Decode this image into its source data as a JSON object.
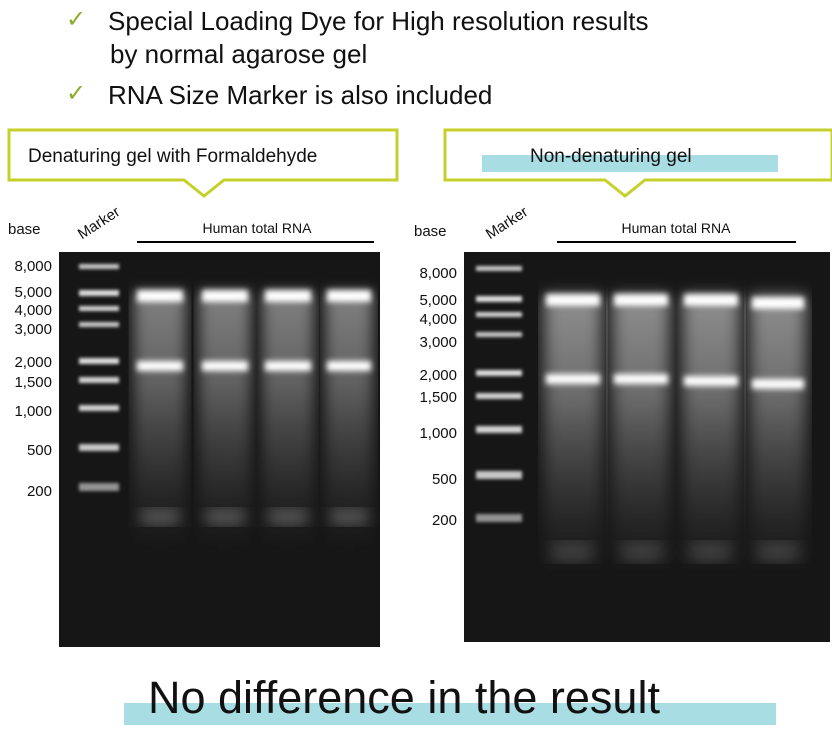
{
  "bullets": [
    {
      "icon": "checkmark-icon",
      "line1": "Special Loading Dye for High resolution results",
      "line2": "by normal agarose gel"
    },
    {
      "icon": "checkmark-icon",
      "line1": "RNA Size Marker is also included"
    }
  ],
  "accent_colors": {
    "check": "#8aac2c",
    "callout_border": "#c5d12a",
    "highlight": "#a7dde3",
    "gel_background": "#161616"
  },
  "panels": [
    {
      "callout": "Denaturing gel with Formaldehyde",
      "axis_label": "base",
      "marker_label": "Marker",
      "lanes_label": "Human total RNA",
      "size_labels": [
        "8,000",
        "5,000",
        "4,000",
        "3,000",
        "2,000",
        "1,500",
        "1,000",
        "500",
        "200"
      ]
    },
    {
      "callout": "Non-denaturing gel",
      "axis_label": "base",
      "marker_label": "Marker",
      "lanes_label": "Human total RNA",
      "size_labels": [
        "8,000",
        "5,000",
        "4,000",
        "3,000",
        "2,000",
        "1,500",
        "1,000",
        "500",
        "200"
      ]
    }
  ],
  "footer": "No difference in the result"
}
